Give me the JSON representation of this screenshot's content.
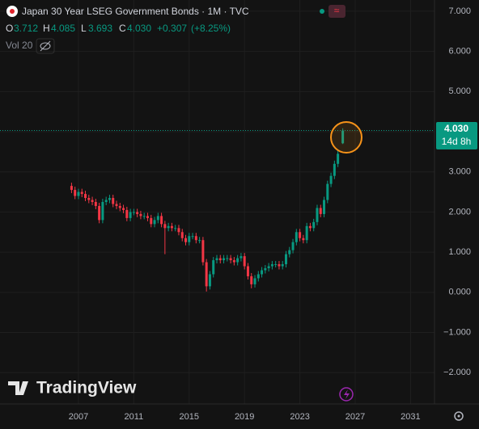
{
  "chart_data": {
    "type": "candlestick",
    "title": "Japan 30 Year LSEG Government Bonds · 1M · TVC",
    "legend": {
      "O": "O",
      "open": "3.712",
      "H": "H",
      "high": "4.085",
      "L": "L",
      "low": "3.693",
      "C": "C",
      "close": "4.030",
      "change": "+0.307",
      "change_pct": "(+8.25%)"
    },
    "volume_label": "Vol 20",
    "price_tag": {
      "value": 4.03,
      "label": "4.030",
      "countdown": "14d 8h"
    },
    "brand": "TradingView",
    "up_color": "#089981",
    "down_color": "#f23645",
    "grid": true,
    "xlim": [
      2001.33,
      2032.73
    ],
    "ylim": [
      -2.78,
      7.28
    ],
    "xticks": [
      2007,
      2011,
      2015,
      2019,
      2023,
      2027,
      2031
    ],
    "yticks": [
      {
        "value": 7,
        "label": "7.000"
      },
      {
        "value": 6,
        "label": "6.000"
      },
      {
        "value": 5,
        "label": "5.000"
      },
      {
        "value": 4,
        "label": "4.000"
      },
      {
        "value": 3,
        "label": "3.000"
      },
      {
        "value": 2,
        "label": "2.000"
      },
      {
        "value": 1,
        "label": "1.000"
      },
      {
        "value": 0,
        "label": "0.000"
      },
      {
        "value": -1,
        "label": "−1.000"
      },
      {
        "value": -2,
        "label": "−2.000"
      }
    ],
    "x": [
      2006.5,
      2006.75,
      2007,
      2007.25,
      2007.5,
      2007.75,
      2008,
      2008.25,
      2008.5,
      2008.75,
      2009,
      2009.25,
      2009.5,
      2009.75,
      2010,
      2010.25,
      2010.5,
      2010.75,
      2011,
      2011.25,
      2011.5,
      2011.75,
      2012,
      2012.25,
      2012.5,
      2012.75,
      2013,
      2013.25,
      2013.5,
      2013.75,
      2014,
      2014.25,
      2014.5,
      2014.75,
      2015,
      2015.25,
      2015.5,
      2015.75,
      2016,
      2016.25,
      2016.5,
      2016.75,
      2017,
      2017.25,
      2017.5,
      2017.75,
      2018,
      2018.25,
      2018.5,
      2018.75,
      2019,
      2019.25,
      2019.5,
      2019.75,
      2020,
      2020.25,
      2020.5,
      2020.75,
      2021,
      2021.25,
      2021.5,
      2021.75,
      2022,
      2022.25,
      2022.5,
      2022.75,
      2023,
      2023.25,
      2023.5,
      2023.75,
      2024,
      2024.25,
      2024.5,
      2024.75,
      2025,
      2025.25,
      2025.5,
      2025.75,
      2026.1
    ],
    "open": [
      2.65,
      2.55,
      2.4,
      2.5,
      2.45,
      2.35,
      2.3,
      2.25,
      2.15,
      1.8,
      2.25,
      2.3,
      2.35,
      2.2,
      2.15,
      2.1,
      2.05,
      1.85,
      2.0,
      2.0,
      1.95,
      1.9,
      1.9,
      1.85,
      1.7,
      1.8,
      1.9,
      1.7,
      1.6,
      1.65,
      1.6,
      1.6,
      1.5,
      1.35,
      1.25,
      1.4,
      1.4,
      1.3,
      1.3,
      0.75,
      0.15,
      0.45,
      0.8,
      0.85,
      0.8,
      0.85,
      0.85,
      0.8,
      0.75,
      0.85,
      0.9,
      0.65,
      0.4,
      0.2,
      0.35,
      0.45,
      0.55,
      0.6,
      0.65,
      0.7,
      0.7,
      0.65,
      0.7,
      0.95,
      1.05,
      1.25,
      1.5,
      1.35,
      1.3,
      1.65,
      1.6,
      1.75,
      2.1,
      1.95,
      2.3,
      2.7,
      2.9,
      3.2,
      3.712
    ],
    "high": [
      2.73,
      2.63,
      2.58,
      2.58,
      2.53,
      2.43,
      2.38,
      2.33,
      2.23,
      2.33,
      2.38,
      2.43,
      2.43,
      2.28,
      2.23,
      2.18,
      2.13,
      2.08,
      2.08,
      2.08,
      2.03,
      1.98,
      1.98,
      1.93,
      1.88,
      1.98,
      1.98,
      1.78,
      1.73,
      1.73,
      1.68,
      1.68,
      1.58,
      1.43,
      1.48,
      1.48,
      1.48,
      1.38,
      1.38,
      0.83,
      0.53,
      0.88,
      0.93,
      0.93,
      0.93,
      0.93,
      0.93,
      0.88,
      0.93,
      0.98,
      0.98,
      0.73,
      0.48,
      0.43,
      0.53,
      0.63,
      0.68,
      0.73,
      0.78,
      0.78,
      0.78,
      0.78,
      1.03,
      1.13,
      1.33,
      1.58,
      1.58,
      1.43,
      1.73,
      1.73,
      1.83,
      2.18,
      2.18,
      2.38,
      2.78,
      2.98,
      3.28,
      3.53,
      4.085
    ],
    "low": [
      2.47,
      2.32,
      2.32,
      2.37,
      2.27,
      2.22,
      2.17,
      2.07,
      1.72,
      1.72,
      2.17,
      2.22,
      2.12,
      2.07,
      2.02,
      1.97,
      1.77,
      1.77,
      1.92,
      1.87,
      1.82,
      1.82,
      1.77,
      1.62,
      1.62,
      1.72,
      1.62,
      0.95,
      1.52,
      1.52,
      1.52,
      1.42,
      1.27,
      1.17,
      1.17,
      1.32,
      1.22,
      1.22,
      0.67,
      0.02,
      0.07,
      0.37,
      0.72,
      0.72,
      0.72,
      0.77,
      0.72,
      0.67,
      0.67,
      0.77,
      0.57,
      0.32,
      0.1,
      0.12,
      0.27,
      0.37,
      0.47,
      0.52,
      0.57,
      0.62,
      0.57,
      0.57,
      0.62,
      0.87,
      0.97,
      1.17,
      1.27,
      1.22,
      1.22,
      1.52,
      1.52,
      1.67,
      1.87,
      1.87,
      2.22,
      2.62,
      2.82,
      3.12,
      3.693
    ],
    "close": [
      2.55,
      2.4,
      2.5,
      2.45,
      2.35,
      2.3,
      2.25,
      2.15,
      1.8,
      2.25,
      2.3,
      2.35,
      2.2,
      2.15,
      2.1,
      2.05,
      1.85,
      2.0,
      2.0,
      1.95,
      1.9,
      1.9,
      1.85,
      1.7,
      1.8,
      1.9,
      1.7,
      1.6,
      1.65,
      1.6,
      1.6,
      1.5,
      1.35,
      1.25,
      1.4,
      1.4,
      1.3,
      1.3,
      0.75,
      0.15,
      0.45,
      0.8,
      0.85,
      0.8,
      0.85,
      0.85,
      0.8,
      0.75,
      0.85,
      0.9,
      0.65,
      0.4,
      0.2,
      0.35,
      0.45,
      0.55,
      0.6,
      0.65,
      0.7,
      0.7,
      0.65,
      0.7,
      0.95,
      1.05,
      1.25,
      1.5,
      1.35,
      1.3,
      1.65,
      1.6,
      1.75,
      2.1,
      1.95,
      2.3,
      2.7,
      2.9,
      3.2,
      3.45,
      4.03
    ]
  }
}
